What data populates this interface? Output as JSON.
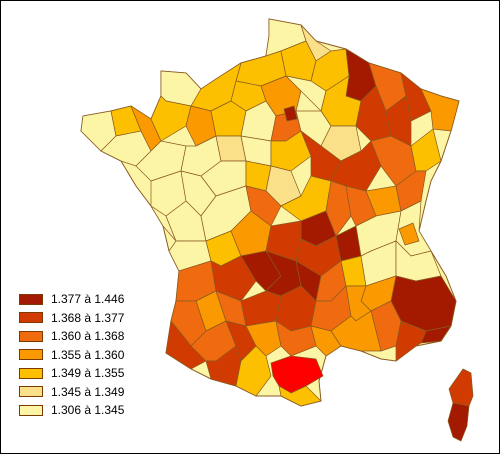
{
  "legend": {
    "items": [
      {
        "label": "1.377 à 1.446",
        "color": "#a31a00"
      },
      {
        "label": "1.368 à 1.377",
        "color": "#d13a00"
      },
      {
        "label": "1.360 à 1.368",
        "color": "#f06a10"
      },
      {
        "label": "1.355 à 1.360",
        "color": "#fa9a00"
      },
      {
        "label": "1.349 à 1.355",
        "color": "#fcc000"
      },
      {
        "label": "1.345 à 1.349",
        "color": "#fbe08a"
      },
      {
        "label": "1.306 à 1.345",
        "color": "#fdf5a6"
      }
    ]
  },
  "highlight_color": "#ff0000"
}
